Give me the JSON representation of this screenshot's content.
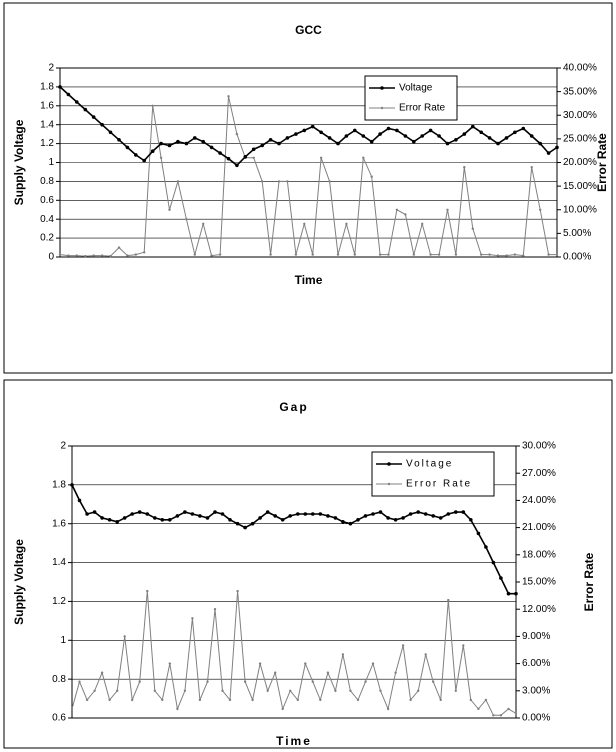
{
  "chart_data": [
    {
      "type": "line",
      "title": "GCC",
      "x_label": "Time",
      "y_label": "Supply Voltage",
      "y2_label": "Error Rate",
      "categories": [
        null,
        null,
        null,
        null,
        null,
        null,
        null,
        null,
        null,
        null,
        null,
        null,
        null,
        null,
        null,
        null,
        null,
        null,
        null,
        null,
        null,
        null,
        null,
        null,
        null,
        null,
        null,
        null,
        null,
        null,
        null,
        null,
        null,
        null,
        null,
        null,
        null,
        null,
        null,
        null,
        null,
        null,
        null,
        null,
        null,
        null,
        null,
        null,
        null,
        null,
        null,
        null,
        null,
        null,
        null,
        null,
        null,
        null,
        null,
        null
      ],
      "ylim": [
        0,
        2
      ],
      "yticks": [
        0,
        0.2,
        0.4,
        0.6,
        0.8,
        1,
        1.2,
        1.4,
        1.6,
        1.8,
        2
      ],
      "y2lim": [
        0,
        40
      ],
      "y2ticks": [
        {
          "value": 0,
          "label": "0.00%"
        },
        {
          "value": 5,
          "label": "5.00%"
        },
        {
          "value": 10,
          "label": "10.00%"
        },
        {
          "value": 15,
          "label": "15.00%"
        },
        {
          "value": 20,
          "label": "20.00%"
        },
        {
          "value": 25,
          "label": "25.00%"
        },
        {
          "value": 30,
          "label": "30.00%"
        },
        {
          "value": 35,
          "label": "35.00%"
        },
        {
          "value": 40,
          "label": "40.00%"
        }
      ],
      "grid": true,
      "legend": "upper right",
      "series": [
        {
          "name": "Voltage",
          "color": "#000000",
          "axis": "y",
          "values": [
            1.8,
            1.72,
            1.64,
            1.56,
            1.48,
            1.4,
            1.32,
            1.24,
            1.16,
            1.08,
            1.02,
            1.12,
            1.2,
            1.18,
            1.22,
            1.2,
            1.26,
            1.22,
            1.16,
            1.1,
            1.04,
            0.97,
            1.06,
            1.14,
            1.18,
            1.24,
            1.2,
            1.26,
            1.3,
            1.34,
            1.38,
            1.32,
            1.26,
            1.2,
            1.28,
            1.34,
            1.28,
            1.22,
            1.3,
            1.36,
            1.34,
            1.28,
            1.22,
            1.28,
            1.34,
            1.28,
            1.2,
            1.24,
            1.3,
            1.38,
            1.32,
            1.26,
            1.2,
            1.26,
            1.32,
            1.36,
            1.28,
            1.2,
            1.1,
            1.16
          ]
        },
        {
          "name": "Error Rate",
          "color": "#808080",
          "axis": "y2",
          "values": [
            0.5,
            0.3,
            0.3,
            0.2,
            0.3,
            0.3,
            0.2,
            2,
            0.3,
            0.5,
            1,
            32,
            21,
            10,
            16,
            8,
            0.5,
            7,
            0.3,
            0.5,
            34,
            26,
            21,
            21,
            16,
            0.5,
            16,
            16,
            0.5,
            7,
            0.5,
            21,
            16,
            0.5,
            7,
            0.5,
            21,
            17,
            0.5,
            0.5,
            10,
            9,
            0.5,
            7,
            0.5,
            0.5,
            10,
            0.5,
            19,
            6,
            0.5,
            0.5,
            0.3,
            0.3,
            0.5,
            0.3,
            19,
            10,
            0.5,
            0.5
          ]
        }
      ]
    },
    {
      "type": "line",
      "title": "Gap",
      "x_label": "Time",
      "y_label": "Supply Voltage",
      "y2_label": "Error Rate",
      "categories": [
        null,
        null,
        null,
        null,
        null,
        null,
        null,
        null,
        null,
        null,
        null,
        null,
        null,
        null,
        null,
        null,
        null,
        null,
        null,
        null,
        null,
        null,
        null,
        null,
        null,
        null,
        null,
        null,
        null,
        null,
        null,
        null,
        null,
        null,
        null,
        null,
        null,
        null,
        null,
        null,
        null,
        null,
        null,
        null,
        null,
        null,
        null,
        null,
        null,
        null,
        null,
        null,
        null,
        null,
        null,
        null,
        null,
        null,
        null,
        null
      ],
      "ylim": [
        0.6,
        2
      ],
      "yticks": [
        0.6,
        0.8,
        1,
        1.2,
        1.4,
        1.6,
        1.8,
        2
      ],
      "y2lim": [
        0,
        30
      ],
      "y2ticks": [
        {
          "value": 0,
          "label": "0.00%"
        },
        {
          "value": 3,
          "label": "3.00%"
        },
        {
          "value": 6,
          "label": "6.00%"
        },
        {
          "value": 9,
          "label": "9.00%"
        },
        {
          "value": 12,
          "label": "12.00%"
        },
        {
          "value": 15,
          "label": "15.00%"
        },
        {
          "value": 18,
          "label": "18.00%"
        },
        {
          "value": 21,
          "label": "21.00%"
        },
        {
          "value": 24,
          "label": "24.00%"
        },
        {
          "value": 27,
          "label": "27.00%"
        },
        {
          "value": 30,
          "label": "30.00%"
        }
      ],
      "grid": true,
      "legend": "upper right",
      "series": [
        {
          "name": "Voltage",
          "color": "#000000",
          "axis": "y",
          "values": [
            1.8,
            1.72,
            1.65,
            1.66,
            1.63,
            1.62,
            1.61,
            1.63,
            1.65,
            1.66,
            1.65,
            1.63,
            1.62,
            1.62,
            1.64,
            1.66,
            1.65,
            1.64,
            1.63,
            1.66,
            1.65,
            1.62,
            1.6,
            1.58,
            1.6,
            1.63,
            1.66,
            1.64,
            1.62,
            1.64,
            1.65,
            1.65,
            1.65,
            1.65,
            1.64,
            1.63,
            1.61,
            1.6,
            1.62,
            1.64,
            1.65,
            1.66,
            1.63,
            1.62,
            1.63,
            1.65,
            1.66,
            1.65,
            1.64,
            1.63,
            1.65,
            1.66,
            1.66,
            1.62,
            1.55,
            1.48,
            1.4,
            1.32,
            1.24,
            1.24
          ]
        },
        {
          "name": "Error Rate",
          "color": "#808080",
          "axis": "y2",
          "values": [
            1,
            4,
            2,
            3,
            5,
            2,
            3,
            9,
            2,
            4,
            14,
            3,
            2,
            6,
            1,
            3,
            11,
            2,
            4,
            12,
            3,
            2,
            14,
            4,
            2,
            6,
            3,
            5,
            1,
            3,
            2,
            6,
            4,
            2,
            5,
            3,
            7,
            3,
            2,
            4,
            6,
            3,
            1,
            5,
            8,
            2,
            3,
            7,
            4,
            2,
            13,
            3,
            8,
            2,
            1,
            2,
            0.3,
            0.3,
            1,
            0.5
          ]
        }
      ]
    }
  ]
}
